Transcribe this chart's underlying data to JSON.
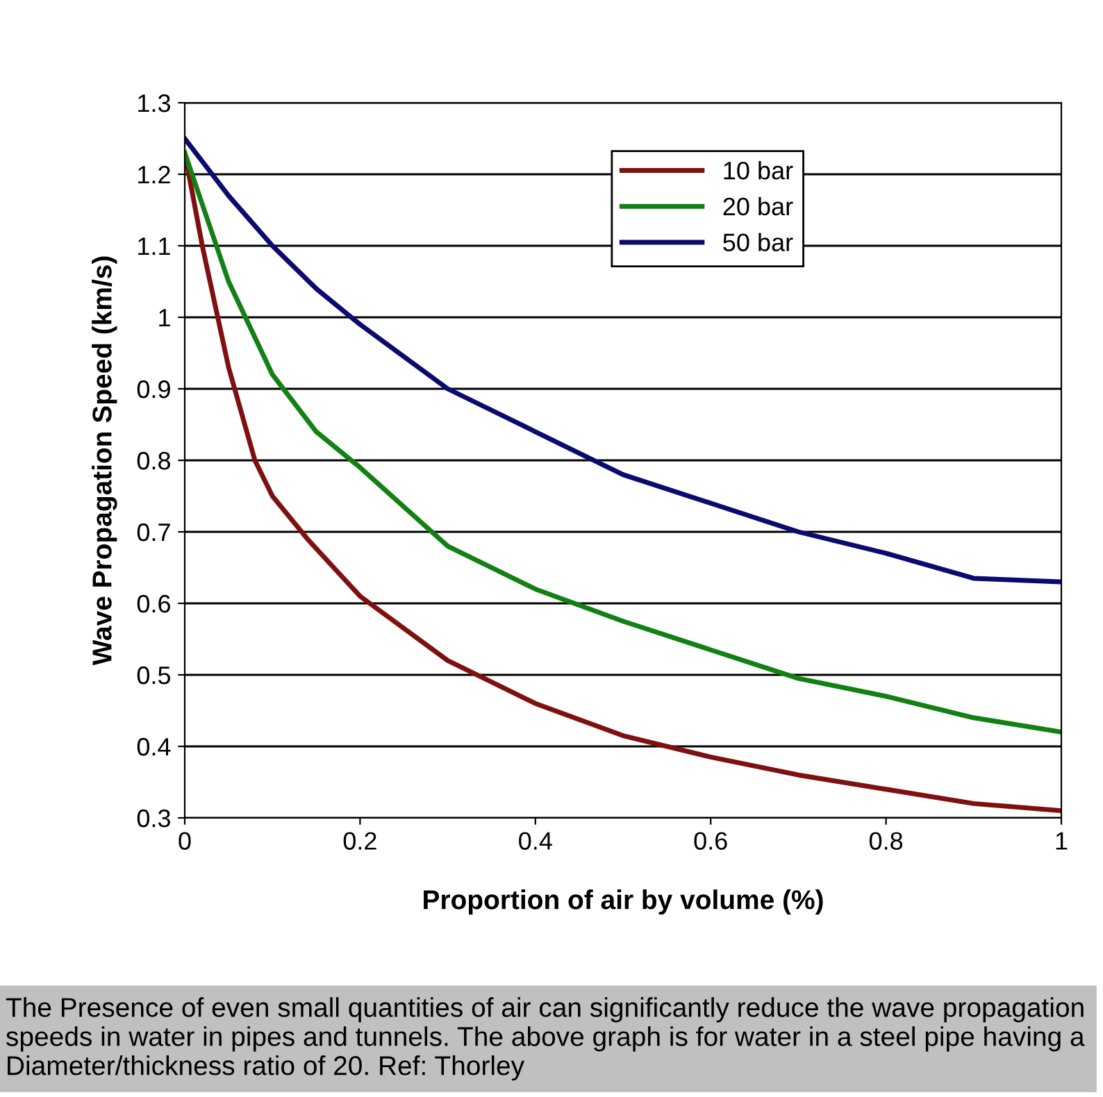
{
  "chart_data": {
    "type": "line",
    "xlabel": "Proportion of air by volume (%)",
    "ylabel": "Wave Propagation Speed (km/s)",
    "series": [
      {
        "name": "10 bar",
        "color": "#7f1010",
        "x": [
          0,
          0.02,
          0.05,
          0.08,
          0.1,
          0.14,
          0.2,
          0.3,
          0.4,
          0.5,
          0.6,
          0.7,
          0.8,
          0.9,
          1
        ],
        "values": [
          1.23,
          1.1,
          0.93,
          0.8,
          0.75,
          0.69,
          0.61,
          0.52,
          0.46,
          0.415,
          0.385,
          0.36,
          0.34,
          0.32,
          0.31
        ]
      },
      {
        "name": "20 bar",
        "color": "#138013",
        "x": [
          0,
          0.05,
          0.1,
          0.15,
          0.2,
          0.3,
          0.4,
          0.5,
          0.6,
          0.7,
          0.8,
          0.9,
          1
        ],
        "values": [
          1.23,
          1.05,
          0.92,
          0.84,
          0.79,
          0.68,
          0.62,
          0.575,
          0.535,
          0.495,
          0.47,
          0.44,
          0.42
        ]
      },
      {
        "name": "50 bar",
        "color": "#0a0a70",
        "x": [
          0,
          0.05,
          0.1,
          0.15,
          0.2,
          0.3,
          0.4,
          0.5,
          0.6,
          0.7,
          0.8,
          0.9,
          1
        ],
        "values": [
          1.25,
          1.17,
          1.1,
          1.04,
          0.99,
          0.9,
          0.84,
          0.78,
          0.74,
          0.7,
          0.67,
          0.635,
          0.63
        ]
      }
    ],
    "xlim": [
      0,
      1
    ],
    "xticks": [
      0,
      0.2,
      0.4,
      0.6,
      0.8,
      1
    ],
    "ylim": [
      0.3,
      1.3
    ],
    "yticks": [
      0.3,
      0.4,
      0.5,
      0.6,
      0.7,
      0.8,
      0.9,
      1,
      1.1,
      1.2,
      1.3
    ],
    "grid": "y",
    "legend": "top right",
    "marker": "none",
    "line_style": "solid",
    "annotations": [
      "The Presence of even small quantities of air can significantly reduce the wave propagation speeds in water in pipes and tunnels. The above graph is for water in a steel pipe having a Diameter/thickness ratio of 20. Ref: Thorley"
    ]
  }
}
